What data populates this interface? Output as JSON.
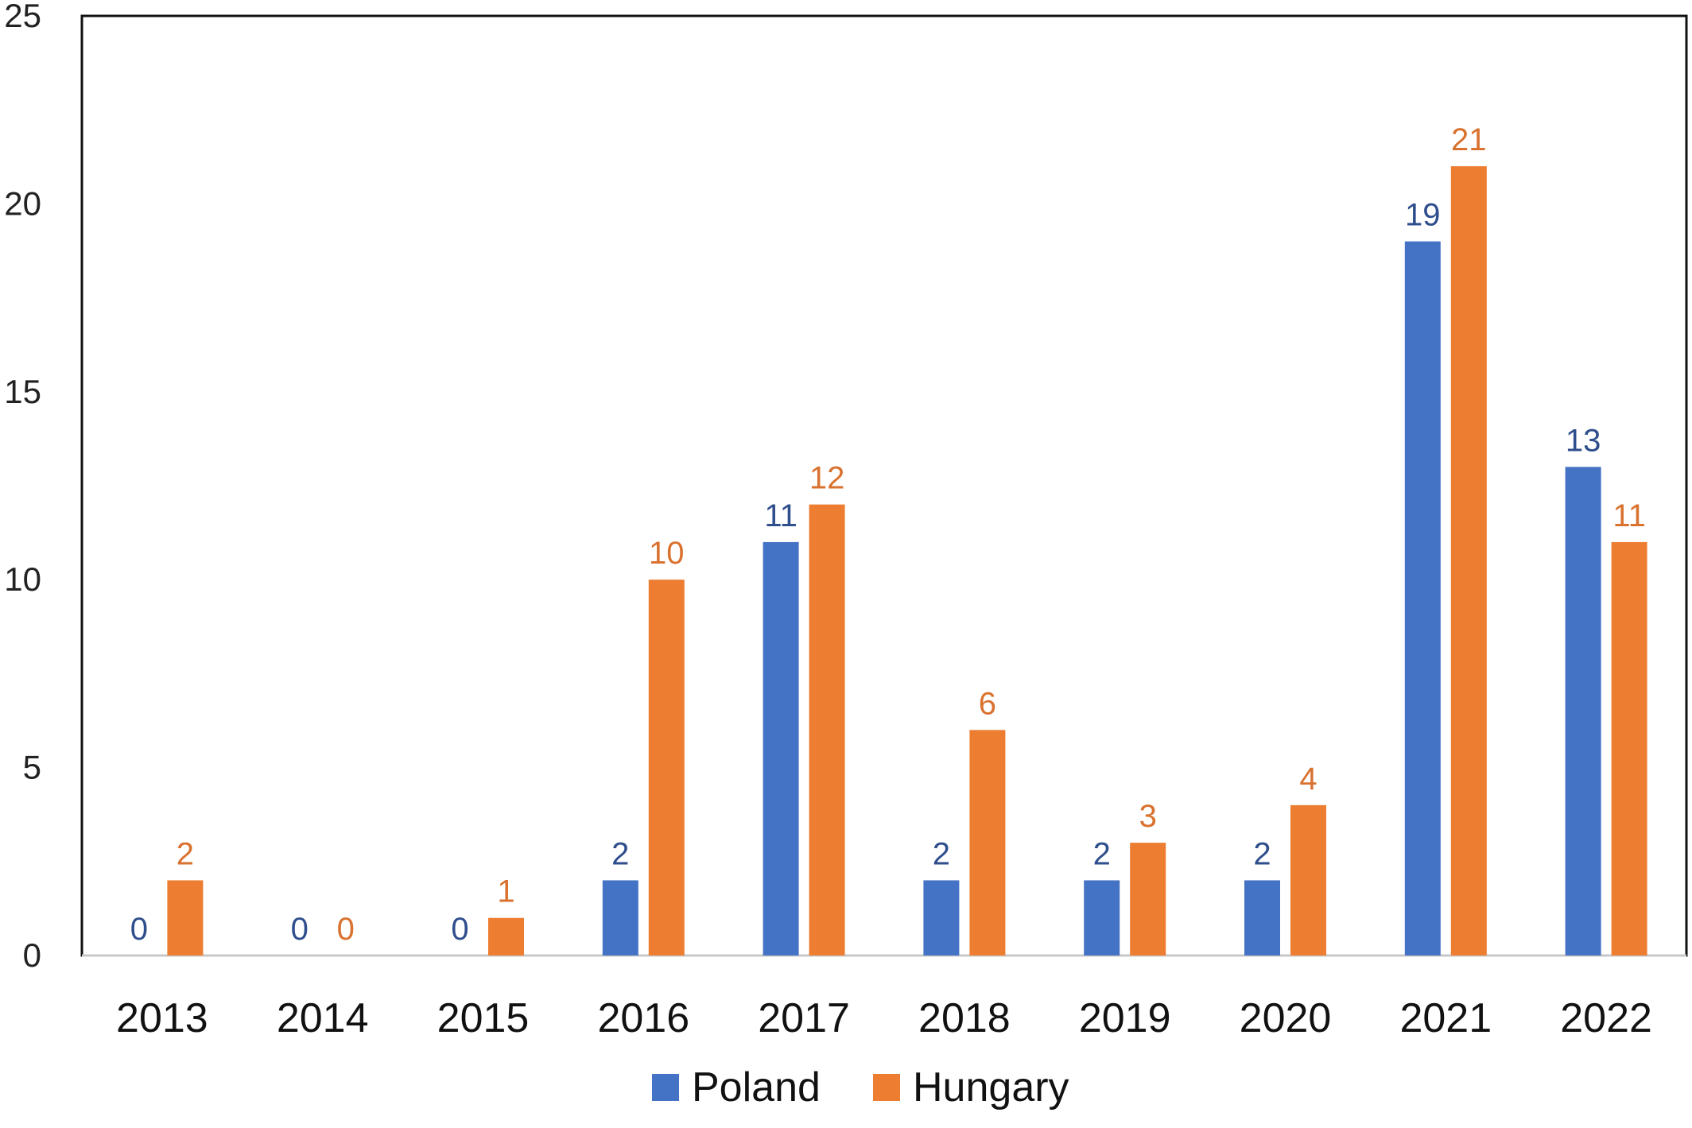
{
  "chart_data": {
    "type": "bar",
    "title": "",
    "xlabel": "",
    "ylabel": "",
    "categories": [
      "2013",
      "2014",
      "2015",
      "2016",
      "2017",
      "2018",
      "2019",
      "2020",
      "2021",
      "2022"
    ],
    "series": [
      {
        "name": "Poland",
        "color": "#4472C4",
        "label_color": "#2F4E8C",
        "values": [
          0,
          0,
          0,
          2,
          11,
          2,
          2,
          2,
          19,
          13
        ]
      },
      {
        "name": "Hungary",
        "color": "#ED7D31",
        "label_color": "#D9722F",
        "values": [
          2,
          0,
          1,
          10,
          12,
          6,
          3,
          4,
          21,
          11
        ]
      }
    ],
    "ylim": [
      0,
      25
    ],
    "yticks": [
      0,
      5,
      10,
      15,
      20,
      25
    ],
    "grid": false,
    "data_labels": true,
    "legend_position": "bottom-center"
  }
}
